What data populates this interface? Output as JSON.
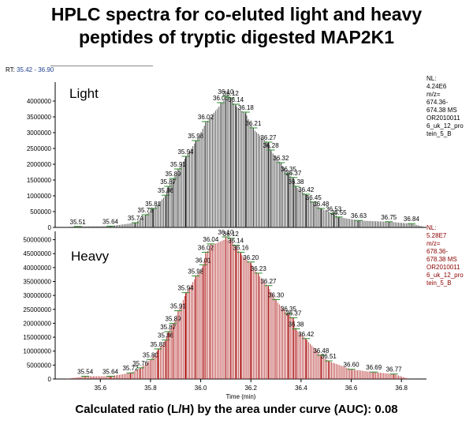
{
  "title_line1": "HPLC spectra for co-eluted light and heavy",
  "title_line2": "peptides of tryptic digested MAP2K1",
  "rt_label": "RT:",
  "rt_range": "35.42 - 36.90",
  "caption": "Calculated ratio (L/H) by the area under curve (AUC): 0.08",
  "colors": {
    "light_stick": "#333333",
    "heavy_stick": "#b22222",
    "annotation_green": "#2e8b2e",
    "heavy_info": "#8b0000"
  },
  "chart_data": [
    {
      "type": "bar",
      "name": "Light",
      "x_range": [
        35.42,
        36.9
      ],
      "ylim": [
        0,
        4600000
      ],
      "yticks": [
        0,
        500000,
        1000000,
        1500000,
        2000000,
        2500000,
        3000000,
        3500000,
        4000000
      ],
      "peaks": [
        {
          "x": 35.51,
          "y": 30000
        },
        {
          "x": 35.64,
          "y": 40000
        },
        {
          "x": 35.74,
          "y": 150000
        },
        {
          "x": 35.78,
          "y": 400000
        },
        {
          "x": 35.81,
          "y": 600000
        },
        {
          "x": 35.86,
          "y": 1020000
        },
        {
          "x": 35.87,
          "y": 1300000
        },
        {
          "x": 35.89,
          "y": 1550000
        },
        {
          "x": 35.91,
          "y": 1850000
        },
        {
          "x": 35.94,
          "y": 2250000
        },
        {
          "x": 35.98,
          "y": 2750000
        },
        {
          "x": 36.02,
          "y": 3350000
        },
        {
          "x": 36.08,
          "y": 3950000
        },
        {
          "x": 36.1,
          "y": 4150000
        },
        {
          "x": 36.12,
          "y": 4100000
        },
        {
          "x": 36.14,
          "y": 3900000
        },
        {
          "x": 36.18,
          "y": 3650000
        },
        {
          "x": 36.21,
          "y": 3150000
        },
        {
          "x": 36.27,
          "y": 2700000
        },
        {
          "x": 36.28,
          "y": 2450000
        },
        {
          "x": 36.32,
          "y": 2050000
        },
        {
          "x": 36.35,
          "y": 1700000
        },
        {
          "x": 36.37,
          "y": 1580000
        },
        {
          "x": 36.38,
          "y": 1300000
        },
        {
          "x": 36.42,
          "y": 1050000
        },
        {
          "x": 36.45,
          "y": 800000
        },
        {
          "x": 36.48,
          "y": 600000
        },
        {
          "x": 36.53,
          "y": 440000
        },
        {
          "x": 36.55,
          "y": 330000
        },
        {
          "x": 36.63,
          "y": 220000
        },
        {
          "x": 36.75,
          "y": 180000
        },
        {
          "x": 36.84,
          "y": 120000
        }
      ],
      "label": "Light",
      "info": [
        "NL:",
        "4.24E6",
        "m/z=",
        "674.36-",
        "674.38  MS",
        "OR2010011",
        "6_uk_12_pro",
        "tein_5_B"
      ]
    },
    {
      "type": "bar",
      "name": "Heavy",
      "x_range": [
        35.42,
        36.9
      ],
      "ylim": [
        0,
        53000000
      ],
      "yticks": [
        0,
        5000000,
        10000000,
        15000000,
        20000000,
        25000000,
        30000000,
        35000000,
        40000000,
        45000000,
        50000000
      ],
      "xticks": [
        35.6,
        35.8,
        36.0,
        36.2,
        36.4,
        36.6,
        36.8
      ],
      "xlabel": "Time (min)",
      "peaks": [
        {
          "x": 35.54,
          "y": 1000000
        },
        {
          "x": 35.64,
          "y": 1000000
        },
        {
          "x": 35.72,
          "y": 2200000
        },
        {
          "x": 35.76,
          "y": 4000000
        },
        {
          "x": 35.8,
          "y": 7000000
        },
        {
          "x": 35.83,
          "y": 10800000
        },
        {
          "x": 35.86,
          "y": 14000000
        },
        {
          "x": 35.87,
          "y": 17000000
        },
        {
          "x": 35.89,
          "y": 20000000
        },
        {
          "x": 35.91,
          "y": 24500000
        },
        {
          "x": 35.94,
          "y": 31000000
        },
        {
          "x": 35.98,
          "y": 37000000
        },
        {
          "x": 36.01,
          "y": 41000000
        },
        {
          "x": 36.02,
          "y": 45500000
        },
        {
          "x": 36.04,
          "y": 48500000
        },
        {
          "x": 36.1,
          "y": 51000000
        },
        {
          "x": 36.12,
          "y": 50500000
        },
        {
          "x": 36.14,
          "y": 48000000
        },
        {
          "x": 36.16,
          "y": 45500000
        },
        {
          "x": 36.2,
          "y": 42000000
        },
        {
          "x": 36.23,
          "y": 38000000
        },
        {
          "x": 36.27,
          "y": 33500000
        },
        {
          "x": 36.3,
          "y": 28500000
        },
        {
          "x": 36.35,
          "y": 23500000
        },
        {
          "x": 36.37,
          "y": 22000000
        },
        {
          "x": 36.38,
          "y": 18000000
        },
        {
          "x": 36.42,
          "y": 14500000
        },
        {
          "x": 36.48,
          "y": 8500000
        },
        {
          "x": 36.51,
          "y": 6500000
        },
        {
          "x": 36.6,
          "y": 3500000
        },
        {
          "x": 36.69,
          "y": 2500000
        },
        {
          "x": 36.77,
          "y": 1800000
        }
      ],
      "label": "Heavy",
      "info": [
        "NL:",
        "5.28E7",
        "m/z=",
        "678.36-",
        "678.38  MS",
        "OR2010011",
        "6_uk_12_pro",
        "tein_5_B"
      ]
    }
  ]
}
